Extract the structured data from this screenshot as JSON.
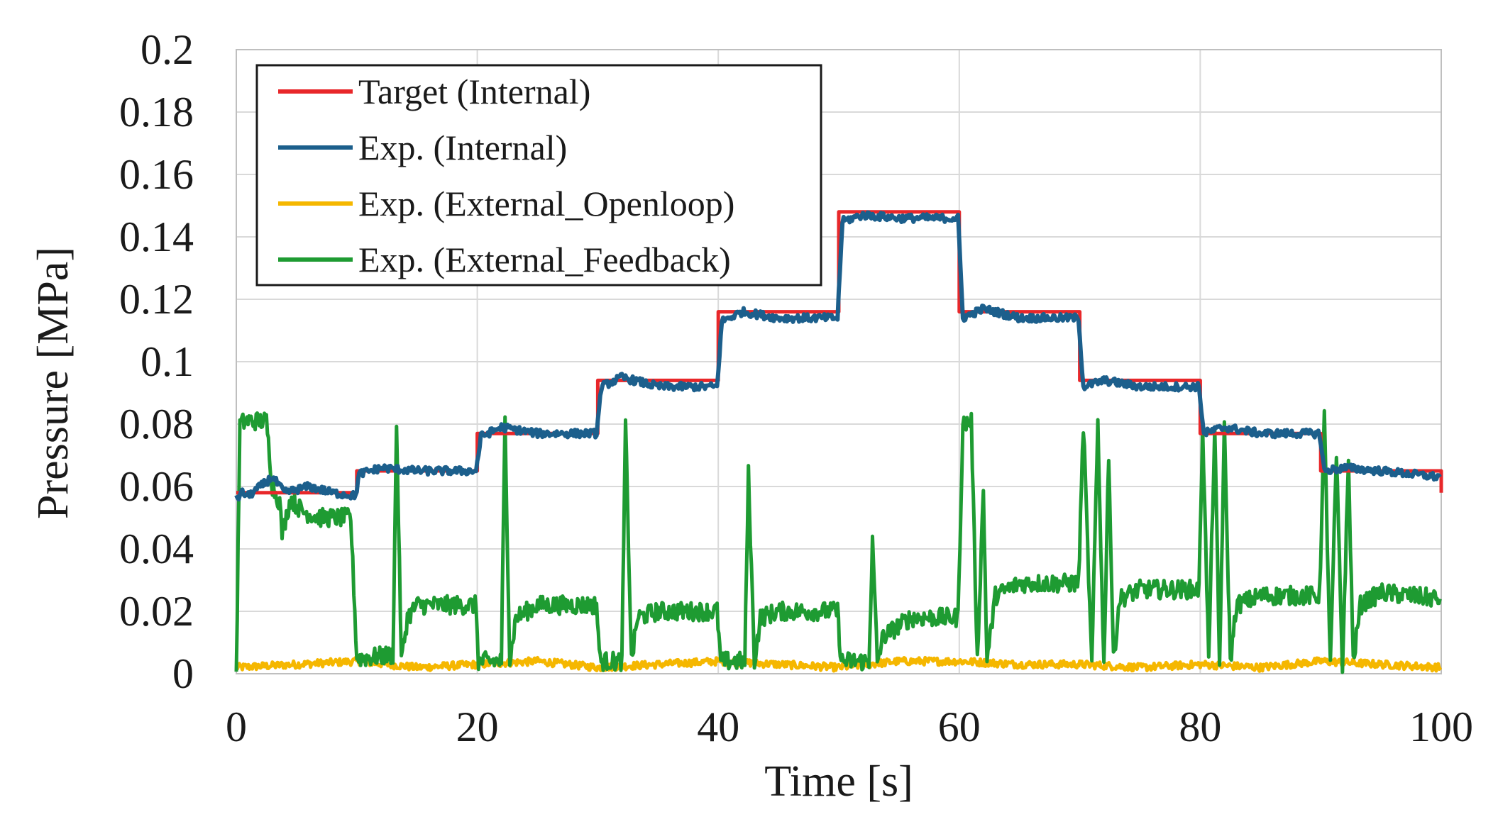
{
  "chart_data": {
    "type": "line",
    "xlabel": "Time [s]",
    "ylabel": "Pressure [MPa]",
    "xlim": [
      0,
      100
    ],
    "ylim": [
      0,
      0.2
    ],
    "x_ticks": [
      "0",
      "20",
      "40",
      "60",
      "80",
      "100"
    ],
    "y_ticks": [
      "0",
      "0.02",
      "0.04",
      "0.06",
      "0.08",
      "0.1",
      "0.12",
      "0.14",
      "0.16",
      "0.18",
      "0.2"
    ],
    "grid": true,
    "legend_position": "top-left",
    "series": [
      {
        "name": "Target (Internal)",
        "color": "#e8272a",
        "x": [
          0,
          10,
          10,
          20,
          20,
          30,
          30,
          40,
          40,
          50,
          50,
          60,
          60,
          70,
          70,
          80,
          80,
          90,
          90,
          100,
          100
        ],
        "y": [
          0.058,
          0.058,
          0.065,
          0.065,
          0.077,
          0.077,
          0.094,
          0.094,
          0.116,
          0.116,
          0.148,
          0.148,
          0.116,
          0.116,
          0.094,
          0.094,
          0.077,
          0.077,
          0.065,
          0.065,
          0.058
        ]
      },
      {
        "name": "Exp. (Internal)",
        "color": "#1c5f8c",
        "x": [
          0,
          0.5,
          1,
          2,
          3,
          4,
          6,
          8,
          9.9,
          10.2,
          12,
          15,
          19.9,
          20.3,
          22,
          25,
          29.9,
          30.3,
          32,
          35,
          39.9,
          40.3,
          42,
          45,
          49.9,
          50.3,
          52,
          55,
          59.9,
          60.3,
          62,
          65,
          69.9,
          70.3,
          72,
          75,
          79.9,
          80.3,
          82,
          85,
          89.9,
          90.3,
          92,
          95,
          99.9
        ],
        "y": [
          0.056,
          0.058,
          0.057,
          0.06,
          0.063,
          0.058,
          0.06,
          0.058,
          0.057,
          0.064,
          0.066,
          0.065,
          0.065,
          0.076,
          0.079,
          0.077,
          0.077,
          0.092,
          0.095,
          0.092,
          0.092,
          0.113,
          0.116,
          0.114,
          0.114,
          0.145,
          0.147,
          0.146,
          0.146,
          0.114,
          0.117,
          0.114,
          0.114,
          0.092,
          0.094,
          0.092,
          0.092,
          0.077,
          0.079,
          0.077,
          0.077,
          0.065,
          0.066,
          0.065,
          0.063
        ]
      },
      {
        "name": "Exp. (External_Openloop)",
        "color": "#f5b700",
        "x": [
          0,
          5,
          10,
          15,
          20,
          25,
          30,
          35,
          40,
          45,
          50,
          55,
          60,
          65,
          70,
          75,
          80,
          85,
          90,
          95,
          100
        ],
        "y": [
          0.002,
          0.003,
          0.004,
          0.002,
          0.003,
          0.004,
          0.002,
          0.003,
          0.004,
          0.003,
          0.002,
          0.004,
          0.004,
          0.003,
          0.003,
          0.002,
          0.003,
          0.002,
          0.004,
          0.003,
          0.002
        ],
        "noise": 0.0012
      },
      {
        "name": "Exp. (External_Feedback)",
        "color": "#1e9b32",
        "x": [
          0,
          0.3,
          0.8,
          2.5,
          3.0,
          3.6,
          3.8,
          4.5,
          5.5,
          7,
          9.5,
          10.0,
          10.4,
          13.0,
          13.3,
          13.7,
          14.2,
          15,
          17,
          19.9,
          20.1,
          22.0,
          22.3,
          22.7,
          23.2,
          25,
          29.9,
          30.2,
          32.0,
          32.3,
          32.8,
          33.3,
          35,
          39.9,
          40.2,
          42.2,
          42.5,
          43.0,
          43.5,
          45,
          49.9,
          50.2,
          52.5,
          52.8,
          53.2,
          53.7,
          56,
          59.9,
          60.3,
          61.0,
          61.5,
          62.0,
          62.3,
          63.0,
          65,
          69.9,
          70.3,
          71.0,
          71.5,
          72.0,
          72.4,
          72.8,
          73.3,
          75,
          79.9,
          80.2,
          80.7,
          81.2,
          81.6,
          82.0,
          82.5,
          83.0,
          85,
          89.9,
          90.3,
          90.8,
          91.3,
          91.8,
          92.3,
          92.7,
          93.3,
          95,
          99.9
        ],
        "y": [
          0.0,
          0.08,
          0.081,
          0.081,
          0.06,
          0.055,
          0.045,
          0.056,
          0.052,
          0.05,
          0.05,
          0.005,
          0.005,
          0.006,
          0.08,
          0.004,
          0.018,
          0.022,
          0.022,
          0.022,
          0.004,
          0.004,
          0.081,
          0.004,
          0.018,
          0.022,
          0.022,
          0.004,
          0.004,
          0.08,
          0.004,
          0.018,
          0.02,
          0.02,
          0.004,
          0.004,
          0.064,
          0.004,
          0.018,
          0.02,
          0.02,
          0.004,
          0.004,
          0.042,
          0.004,
          0.012,
          0.018,
          0.018,
          0.08,
          0.081,
          0.004,
          0.059,
          0.004,
          0.025,
          0.029,
          0.029,
          0.08,
          0.002,
          0.081,
          0.002,
          0.071,
          0.004,
          0.024,
          0.027,
          0.027,
          0.08,
          0.004,
          0.079,
          0.002,
          0.078,
          0.004,
          0.022,
          0.025,
          0.025,
          0.082,
          0.002,
          0.07,
          0.002,
          0.068,
          0.004,
          0.022,
          0.026,
          0.024
        ],
        "noise": 0.003
      }
    ]
  }
}
